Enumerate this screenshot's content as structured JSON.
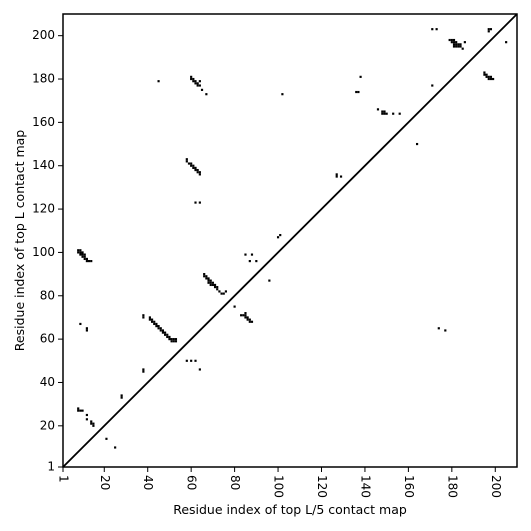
{
  "chart_data": {
    "type": "scatter",
    "title": "",
    "xlabel": "Residue index of top L/5 contact map",
    "ylabel": "Residue index of top L contact map",
    "xlim": [
      1,
      210
    ],
    "ylim": [
      1,
      210
    ],
    "xticks": [
      1,
      20,
      40,
      60,
      80,
      100,
      120,
      140,
      160,
      180,
      200
    ],
    "yticks": [
      1,
      20,
      40,
      60,
      80,
      100,
      120,
      140,
      160,
      180,
      200
    ],
    "grid": false,
    "legend": "none",
    "marker_color": "#000000",
    "diagonal": {
      "from": [
        1,
        1
      ],
      "to": [
        210,
        210
      ]
    },
    "series": [
      {
        "region": "upper-left",
        "points": [
          [
            8,
            101
          ],
          [
            8,
            100
          ],
          [
            9,
            101
          ],
          [
            9,
            100
          ],
          [
            9,
            99
          ],
          [
            10,
            100
          ],
          [
            10,
            99
          ],
          [
            10,
            98
          ],
          [
            11,
            99
          ],
          [
            11,
            98
          ],
          [
            11,
            97
          ],
          [
            12,
            97
          ],
          [
            12,
            96
          ],
          [
            13,
            96
          ],
          [
            14,
            96
          ],
          [
            9,
            67
          ],
          [
            12,
            65
          ],
          [
            12,
            64
          ],
          [
            8,
            28
          ],
          [
            8,
            27
          ],
          [
            9,
            27
          ],
          [
            10,
            27
          ],
          [
            12,
            25
          ],
          [
            12,
            23
          ],
          [
            14,
            22
          ],
          [
            14,
            21
          ],
          [
            15,
            21
          ],
          [
            15,
            20
          ],
          [
            21,
            14
          ],
          [
            25,
            10
          ],
          [
            28,
            34
          ],
          [
            28,
            33
          ],
          [
            38,
            46
          ],
          [
            38,
            45
          ],
          [
            38,
            71
          ],
          [
            38,
            70
          ],
          [
            41,
            70
          ],
          [
            41,
            69
          ],
          [
            42,
            69
          ],
          [
            42,
            68
          ],
          [
            43,
            68
          ],
          [
            43,
            67
          ],
          [
            44,
            67
          ],
          [
            44,
            66
          ],
          [
            45,
            66
          ],
          [
            45,
            65
          ],
          [
            46,
            65
          ],
          [
            46,
            64
          ],
          [
            47,
            64
          ],
          [
            47,
            63
          ],
          [
            48,
            63
          ],
          [
            48,
            62
          ],
          [
            49,
            62
          ],
          [
            49,
            61
          ],
          [
            50,
            61
          ],
          [
            50,
            60
          ],
          [
            51,
            60
          ],
          [
            51,
            59
          ],
          [
            52,
            60
          ],
          [
            52,
            59
          ],
          [
            53,
            60
          ],
          [
            53,
            59
          ],
          [
            45,
            179
          ],
          [
            58,
            143
          ],
          [
            58,
            142
          ],
          [
            59,
            141
          ],
          [
            60,
            141
          ],
          [
            60,
            140
          ],
          [
            61,
            140
          ],
          [
            61,
            139
          ],
          [
            62,
            139
          ],
          [
            62,
            138
          ],
          [
            63,
            138
          ],
          [
            63,
            137
          ],
          [
            64,
            137
          ],
          [
            64,
            136
          ],
          [
            62,
            123
          ],
          [
            64,
            123
          ],
          [
            60,
            181
          ],
          [
            60,
            180
          ],
          [
            61,
            180
          ],
          [
            61,
            179
          ],
          [
            62,
            179
          ],
          [
            62,
            178
          ],
          [
            63,
            178
          ],
          [
            63,
            177
          ],
          [
            64,
            179
          ],
          [
            64,
            177
          ],
          [
            65,
            175
          ],
          [
            67,
            173
          ],
          [
            58,
            50
          ],
          [
            60,
            50
          ],
          [
            62,
            50
          ],
          [
            64,
            46
          ],
          [
            66,
            90
          ],
          [
            66,
            89
          ],
          [
            67,
            89
          ],
          [
            67,
            88
          ],
          [
            68,
            88
          ],
          [
            68,
            87
          ],
          [
            68,
            86
          ],
          [
            69,
            87
          ],
          [
            69,
            86
          ],
          [
            69,
            85
          ],
          [
            70,
            86
          ],
          [
            70,
            85
          ],
          [
            71,
            85
          ],
          [
            71,
            84
          ],
          [
            72,
            84
          ],
          [
            72,
            83
          ],
          [
            73,
            82
          ],
          [
            74,
            81
          ],
          [
            75,
            81
          ],
          [
            76,
            82
          ],
          [
            80,
            75
          ],
          [
            83,
            71
          ],
          [
            84,
            71
          ],
          [
            85,
            72
          ],
          [
            85,
            71
          ],
          [
            85,
            70
          ],
          [
            86,
            70
          ],
          [
            86,
            69
          ],
          [
            87,
            69
          ],
          [
            87,
            68
          ],
          [
            88,
            68
          ],
          [
            85,
            99
          ],
          [
            88,
            99
          ],
          [
            87,
            96
          ],
          [
            90,
            96
          ],
          [
            96,
            87
          ],
          [
            100,
            107
          ],
          [
            101,
            108
          ],
          [
            102,
            173
          ],
          [
            127,
            136
          ],
          [
            127,
            135
          ],
          [
            129,
            135
          ],
          [
            136,
            174
          ],
          [
            137,
            174
          ],
          [
            138,
            181
          ],
          [
            146,
            166
          ],
          [
            148,
            165
          ],
          [
            148,
            164
          ],
          [
            149,
            165
          ],
          [
            149,
            164
          ],
          [
            150,
            164
          ],
          [
            153,
            164
          ],
          [
            156,
            164
          ],
          [
            164,
            150
          ],
          [
            171,
            177
          ],
          [
            171,
            203
          ],
          [
            173,
            203
          ],
          [
            179,
            198
          ],
          [
            180,
            198
          ],
          [
            180,
            197
          ],
          [
            181,
            198
          ],
          [
            181,
            197
          ],
          [
            181,
            196
          ],
          [
            181,
            195
          ],
          [
            182,
            197
          ],
          [
            182,
            196
          ],
          [
            182,
            195
          ],
          [
            183,
            196
          ],
          [
            183,
            195
          ],
          [
            184,
            196
          ],
          [
            184,
            195
          ],
          [
            185,
            194
          ],
          [
            186,
            197
          ],
          [
            195,
            183
          ],
          [
            195,
            182
          ],
          [
            196,
            182
          ],
          [
            196,
            181
          ],
          [
            197,
            181
          ],
          [
            197,
            180
          ],
          [
            198,
            181
          ],
          [
            198,
            180
          ],
          [
            199,
            180
          ],
          [
            197,
            203
          ],
          [
            198,
            203
          ],
          [
            197,
            202
          ],
          [
            205,
            197
          ]
        ]
      },
      {
        "region": "lower-right",
        "points": [
          [
            174,
            65
          ],
          [
            177,
            64
          ]
        ]
      }
    ]
  }
}
